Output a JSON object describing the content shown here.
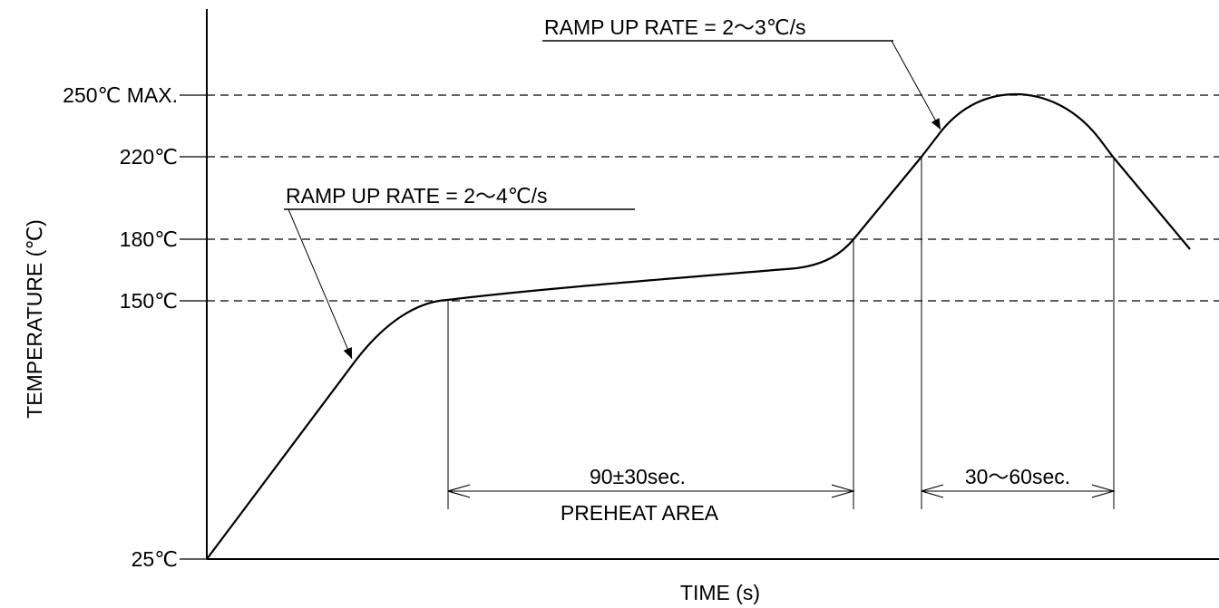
{
  "axes": {
    "y_label": "TEMPERATURE (℃)",
    "x_label": "TIME (s)"
  },
  "temperature_levels": [
    {
      "value": 250,
      "label": "250℃ MAX."
    },
    {
      "value": 220,
      "label": "220℃"
    },
    {
      "value": 180,
      "label": "180℃"
    },
    {
      "value": 150,
      "label": "150℃"
    },
    {
      "value": 25,
      "label": "25℃"
    }
  ],
  "annotations": {
    "ramp_up_preheat": "RAMP UP RATE = 2～4℃/s",
    "ramp_up_reflow": "RAMP UP RATE = 2～3℃/s",
    "preheat_duration": "90±30sec.",
    "preheat_area": "PREHEAT AREA",
    "reflow_duration": "30～60sec."
  }
}
